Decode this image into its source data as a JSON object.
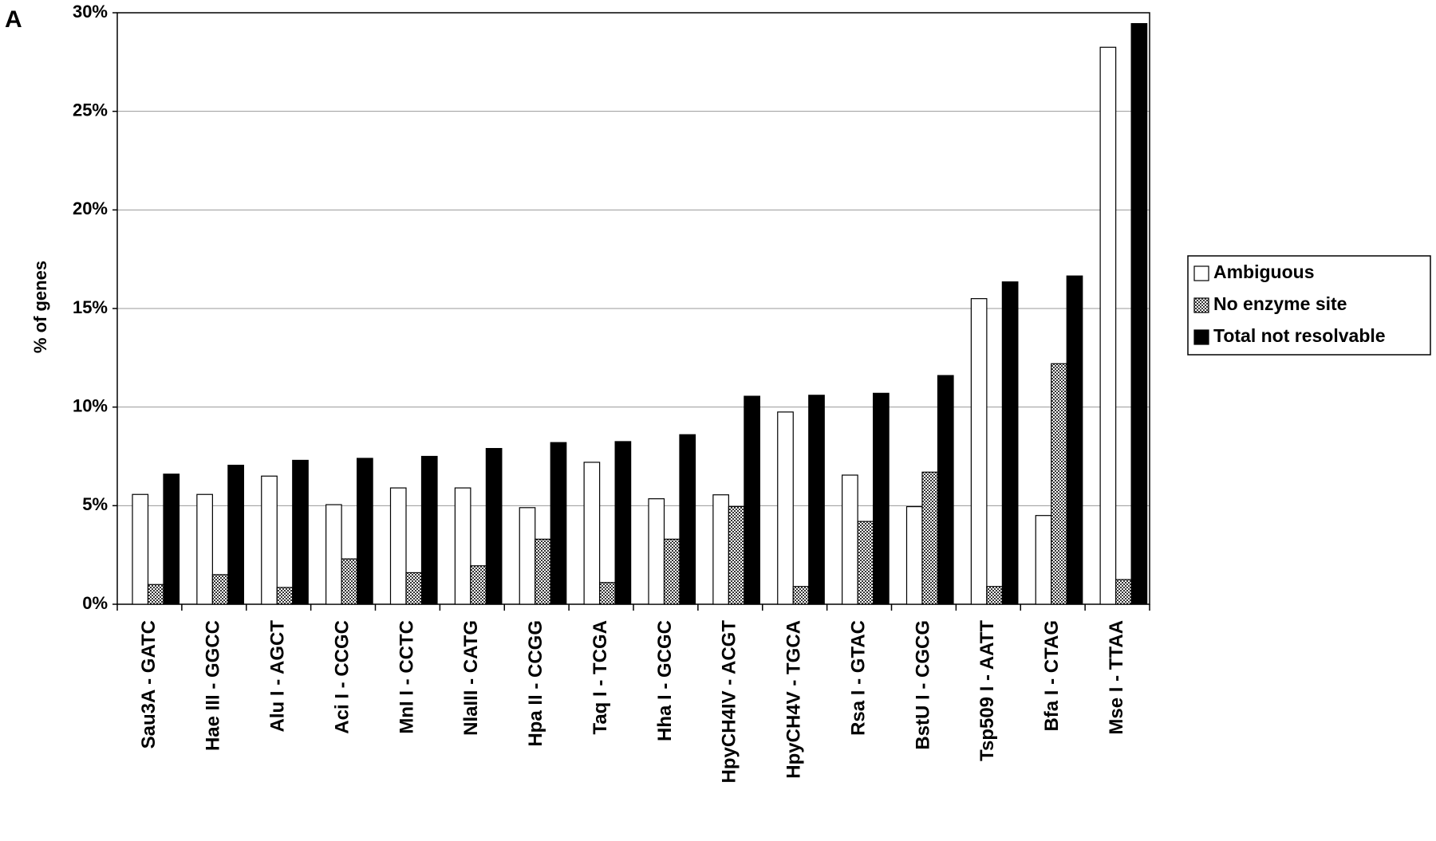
{
  "chart_data": {
    "type": "bar",
    "panel_label": "A",
    "y_label": "% of genes",
    "categories": [
      "Sau3A - GATC",
      "Hae III - GGCC",
      "Alu I - AGCT",
      "Aci I - CCGC",
      "MnI I - CCTC",
      "NlaIII - CATG",
      "Hpa II - CCGG",
      "Taq I - TCGA",
      "Hha I - GCGC",
      "HpyCH4IV - ACGT",
      "HpyCH4V - TGCA",
      "Rsa I - GTAC",
      "BstU I - CGCG",
      "Tsp509 I - AATT",
      "Bfa I - CTAG",
      "Mse I - TTAA"
    ],
    "series": [
      {
        "name": "Ambiguous",
        "color": "#ffffff",
        "values": [
          5.57,
          5.57,
          6.5,
          5.05,
          5.9,
          5.9,
          4.9,
          7.2,
          5.35,
          5.55,
          9.75,
          6.55,
          4.95,
          15.5,
          4.5,
          28.25
        ]
      },
      {
        "name": "No enzyme site",
        "color": "#888888",
        "pattern": "checker",
        "values": [
          1.0,
          1.5,
          0.85,
          2.3,
          1.6,
          1.95,
          3.3,
          1.1,
          3.3,
          4.95,
          0.9,
          4.2,
          6.7,
          0.9,
          12.2,
          1.25
        ]
      },
      {
        "name": "Total not resolvable",
        "color": "#000000",
        "values": [
          6.6,
          7.05,
          7.3,
          7.4,
          7.5,
          7.9,
          8.2,
          8.25,
          8.6,
          10.55,
          10.6,
          10.7,
          11.6,
          16.35,
          16.65,
          29.45
        ]
      }
    ],
    "ylim": [
      0,
      30
    ],
    "yticks": [
      {
        "value": 0,
        "label": "0%"
      },
      {
        "value": 5,
        "label": "5%"
      },
      {
        "value": 10,
        "label": "10%"
      },
      {
        "value": 15,
        "label": "15%"
      },
      {
        "value": 20,
        "label": "20%"
      },
      {
        "value": 25,
        "label": "25%"
      },
      {
        "value": 30,
        "label": "30%"
      }
    ],
    "grid": true,
    "legend": "right"
  }
}
